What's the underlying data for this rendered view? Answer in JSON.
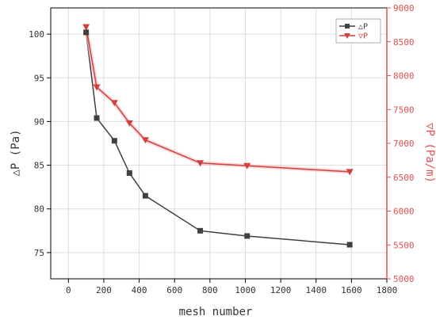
{
  "chart_data": {
    "type": "line",
    "xlabel": "mesh number",
    "ylabel_left": "△P (Pa)",
    "ylabel_right": "▽P (Pa/m)",
    "xlim": [
      -100,
      1800
    ],
    "ylim_left": [
      72,
      103
    ],
    "ylim_right": [
      5000,
      9000
    ],
    "x_ticks": [
      0,
      200,
      400,
      600,
      800,
      1000,
      1200,
      1400,
      1600,
      1800
    ],
    "y_left_ticks": [
      75,
      80,
      85,
      90,
      95,
      100
    ],
    "y_right_ticks": [
      5000,
      5500,
      6000,
      6500,
      7000,
      7500,
      8000,
      8500,
      9000
    ],
    "grid": true,
    "legend_position": "top-right",
    "series": [
      {
        "name": "△P",
        "axis": "left",
        "color": "#404040",
        "marker": "square",
        "x": [
          100,
          160,
          260,
          345,
          435,
          745,
          1010,
          1590
        ],
        "y": [
          100.2,
          90.4,
          87.8,
          84.1,
          81.5,
          77.5,
          76.9,
          75.9
        ]
      },
      {
        "name": "▽P",
        "axis": "right",
        "color": "#d04040",
        "marker": "triangle-down",
        "x": [
          100,
          160,
          260,
          345,
          435,
          745,
          1010,
          1590
        ],
        "y": [
          8720,
          7830,
          7600,
          7300,
          7050,
          6710,
          6670,
          6580
        ]
      }
    ]
  }
}
